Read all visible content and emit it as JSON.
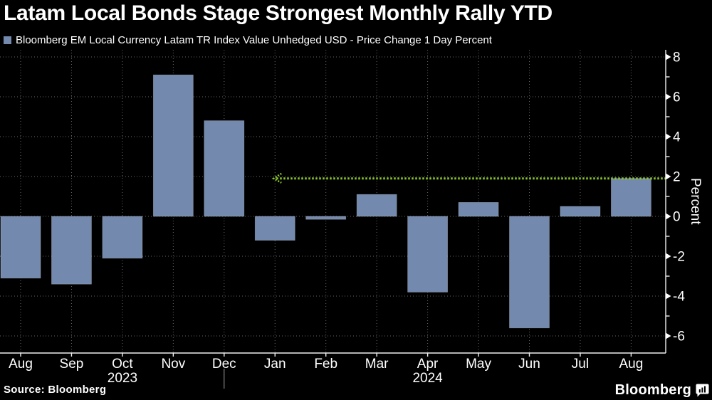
{
  "title": "Latam Local Bonds Stage Strongest Monthly Rally YTD",
  "legend": {
    "label": "Bloomberg EM Local Currency Latam TR Index Value Unhedged USD - Price Change 1 Day Percent",
    "swatch_color": "#7389ad"
  },
  "source": "Source: Bloomberg",
  "brand": {
    "name": "Bloomberg"
  },
  "chart_data": {
    "type": "bar",
    "title": "Latam Local Bonds Stage Strongest Monthly Rally YTD",
    "categories": [
      "Aug",
      "Sep",
      "Oct",
      "Nov",
      "Dec",
      "Jan",
      "Feb",
      "Mar",
      "Apr",
      "May",
      "Jun",
      "Jul",
      "Aug"
    ],
    "series": [
      {
        "name": "Bloomberg EM Local Currency Latam TR Index Value Unhedged USD - Price Change 1 Day Percent",
        "values": [
          -3.1,
          -3.4,
          -2.1,
          7.1,
          4.8,
          -1.2,
          -0.15,
          1.1,
          -3.8,
          0.7,
          -5.6,
          0.5,
          1.9
        ]
      }
    ],
    "year_labels": [
      {
        "index": 2,
        "label": "2023"
      },
      {
        "index": 8,
        "label": "2024"
      }
    ],
    "year_separator_index": 4,
    "xlabel": "",
    "ylabel": "Percent",
    "ylim": [
      -6.9,
      8.4
    ],
    "yticks": [
      8,
      6,
      4,
      2,
      0,
      -2,
      -4,
      -6
    ],
    "grid": true,
    "legend_position": "top-left",
    "y_axis_side": "right",
    "bar_color": "#7389ad",
    "axis_color": "#f0f0f0",
    "background_color": "#000000",
    "reference_line": {
      "value": 1.9,
      "start_category_index": 5,
      "style": "dotted",
      "arrow": "left",
      "color": "#8bc928"
    }
  }
}
